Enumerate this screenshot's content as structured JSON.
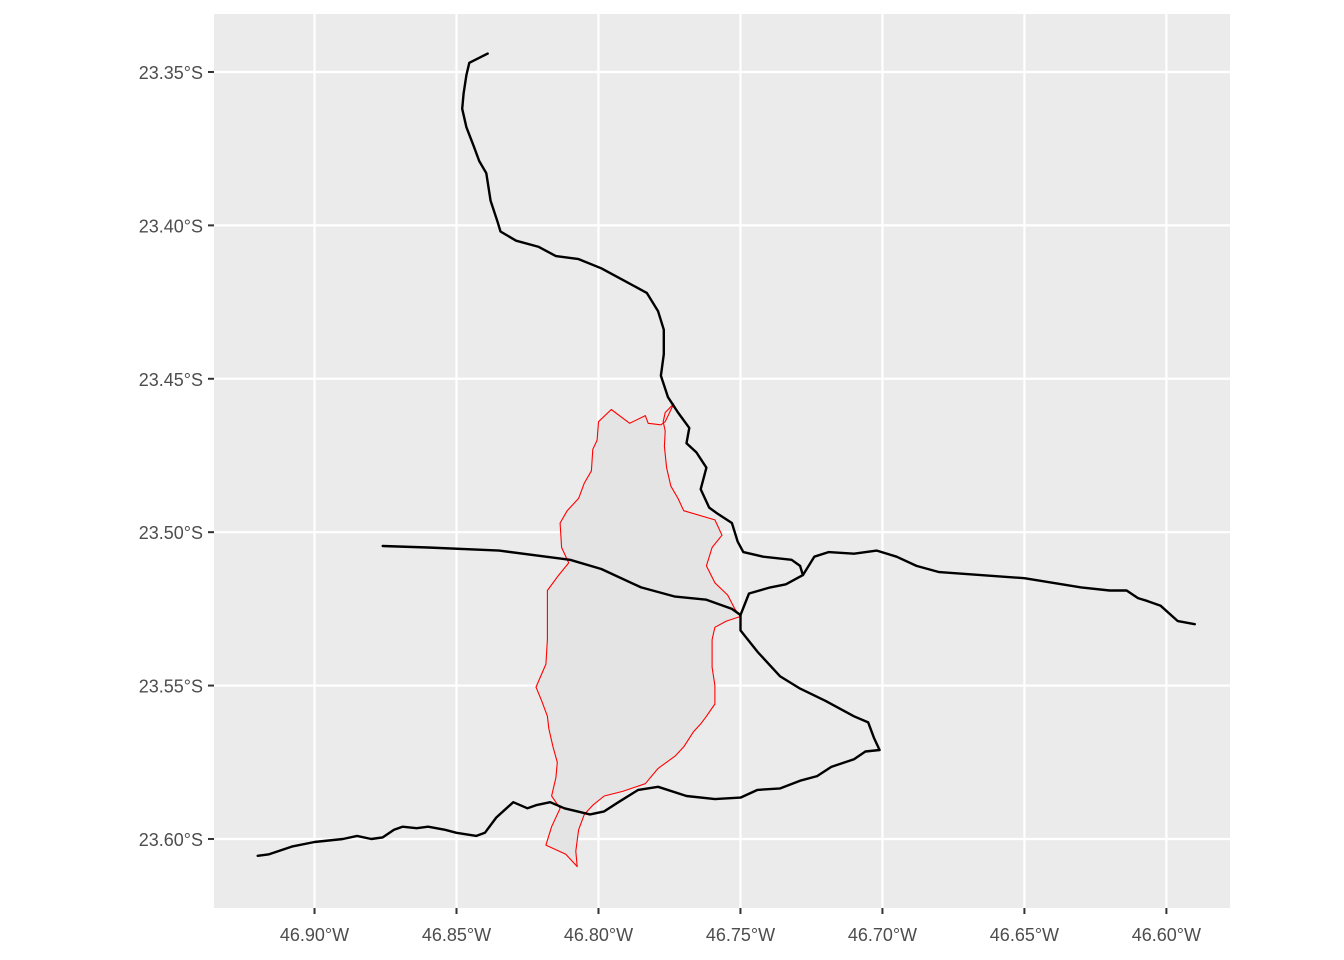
{
  "map": {
    "background_color": "#ebebeb",
    "grid_color": "#ffffff",
    "boundary_stroke_color": "#ff0000",
    "boundary_fill_color": "#e4e4e4",
    "road_color": "#000000",
    "x_ticks": [
      {
        "value": -46.9,
        "label": "46.90°W"
      },
      {
        "value": -46.85,
        "label": "46.85°W"
      },
      {
        "value": -46.8,
        "label": "46.80°W"
      },
      {
        "value": -46.75,
        "label": "46.75°W"
      },
      {
        "value": -46.7,
        "label": "46.70°W"
      },
      {
        "value": -46.65,
        "label": "46.65°W"
      },
      {
        "value": -46.6,
        "label": "46.60°W"
      }
    ],
    "y_ticks": [
      {
        "value": -23.35,
        "label": "23.35°S"
      },
      {
        "value": -23.4,
        "label": "23.40°S"
      },
      {
        "value": -23.45,
        "label": "23.45°S"
      },
      {
        "value": -23.5,
        "label": "23.50°S"
      },
      {
        "value": -23.55,
        "label": "23.55°S"
      },
      {
        "value": -23.6,
        "label": "23.60°S"
      }
    ],
    "lon_range": [
      -46.9354,
      -46.5776
    ],
    "lat_range": [
      -23.6225,
      -23.3311
    ],
    "boundary": [
      [
        -46.7735,
        -23.4582
      ],
      [
        -46.7765,
        -23.461
      ],
      [
        -46.7772,
        -23.464
      ],
      [
        -46.7765,
        -23.467
      ],
      [
        -46.7768,
        -23.472
      ],
      [
        -46.776,
        -23.479
      ],
      [
        -46.7745,
        -23.485
      ],
      [
        -46.772,
        -23.489
      ],
      [
        -46.77,
        -23.493
      ],
      [
        -46.759,
        -23.496
      ],
      [
        -46.7565,
        -23.501
      ],
      [
        -46.76,
        -23.505
      ],
      [
        -46.762,
        -23.511
      ],
      [
        -46.759,
        -23.5165
      ],
      [
        -46.7545,
        -23.5205
      ],
      [
        -46.752,
        -23.525
      ],
      [
        -46.75,
        -23.5275
      ],
      [
        -46.755,
        -23.529
      ],
      [
        -46.759,
        -23.531
      ],
      [
        -46.76,
        -23.535
      ],
      [
        -46.76,
        -23.544
      ],
      [
        -46.759,
        -23.55
      ],
      [
        -46.759,
        -23.556
      ],
      [
        -46.762,
        -23.56
      ],
      [
        -46.764,
        -23.5625
      ],
      [
        -46.7665,
        -23.565
      ],
      [
        -46.77,
        -23.57
      ],
      [
        -46.773,
        -23.573
      ],
      [
        -46.779,
        -23.577
      ],
      [
        -46.7835,
        -23.582
      ],
      [
        -46.7915,
        -23.5845
      ],
      [
        -46.798,
        -23.586
      ],
      [
        -46.802,
        -23.589
      ],
      [
        -46.805,
        -23.592
      ],
      [
        -46.807,
        -23.597
      ],
      [
        -46.808,
        -23.604
      ],
      [
        -46.8075,
        -23.609
      ],
      [
        -46.8115,
        -23.605
      ],
      [
        -46.8185,
        -23.602
      ],
      [
        -46.8165,
        -23.596
      ],
      [
        -46.8135,
        -23.59
      ],
      [
        -46.8165,
        -23.586
      ],
      [
        -46.815,
        -23.58
      ],
      [
        -46.8145,
        -23.575
      ],
      [
        -46.816,
        -23.57
      ],
      [
        -46.8175,
        -23.564
      ],
      [
        -46.818,
        -23.56
      ],
      [
        -46.82,
        -23.555
      ],
      [
        -46.822,
        -23.5505
      ],
      [
        -46.8185,
        -23.543
      ],
      [
        -46.818,
        -23.535
      ],
      [
        -46.818,
        -23.519
      ],
      [
        -46.814,
        -23.514
      ],
      [
        -46.8105,
        -23.51
      ],
      [
        -46.813,
        -23.505
      ],
      [
        -46.8135,
        -23.497
      ],
      [
        -46.811,
        -23.493
      ],
      [
        -46.807,
        -23.489
      ],
      [
        -46.805,
        -23.484
      ],
      [
        -46.8025,
        -23.48
      ],
      [
        -46.802,
        -23.473
      ],
      [
        -46.8005,
        -23.47
      ],
      [
        -46.8,
        -23.464
      ],
      [
        -46.7955,
        -23.46
      ],
      [
        -46.789,
        -23.4645
      ],
      [
        -46.7835,
        -23.462
      ],
      [
        -46.7825,
        -23.4645
      ],
      [
        -46.778,
        -23.465
      ],
      [
        -46.7765,
        -23.464
      ],
      [
        -46.7735,
        -23.4582
      ]
    ],
    "roads": [
      [
        [
          -46.839,
          -23.344
        ],
        [
          -46.8455,
          -23.347
        ],
        [
          -46.8465,
          -23.351
        ],
        [
          -46.8475,
          -23.357
        ],
        [
          -46.848,
          -23.362
        ],
        [
          -46.8465,
          -23.368
        ],
        [
          -46.844,
          -23.374
        ],
        [
          -46.842,
          -23.379
        ],
        [
          -46.8395,
          -23.383
        ],
        [
          -46.838,
          -23.392
        ],
        [
          -46.8355,
          -23.399
        ],
        [
          -46.8345,
          -23.402
        ],
        [
          -46.829,
          -23.405
        ],
        [
          -46.821,
          -23.407
        ],
        [
          -46.815,
          -23.41
        ],
        [
          -46.807,
          -23.411
        ],
        [
          -46.799,
          -23.414
        ],
        [
          -46.791,
          -23.418
        ],
        [
          -46.783,
          -23.422
        ],
        [
          -46.779,
          -23.428
        ],
        [
          -46.777,
          -23.434
        ],
        [
          -46.777,
          -23.442
        ],
        [
          -46.778,
          -23.449
        ],
        [
          -46.7755,
          -23.456
        ],
        [
          -46.772,
          -23.461
        ],
        [
          -46.768,
          -23.466
        ],
        [
          -46.769,
          -23.471
        ],
        [
          -46.7655,
          -23.474
        ],
        [
          -46.762,
          -23.479
        ],
        [
          -46.764,
          -23.486
        ],
        [
          -46.761,
          -23.492
        ],
        [
          -46.758,
          -23.494
        ],
        [
          -46.753,
          -23.497
        ],
        [
          -46.751,
          -23.503
        ],
        [
          -46.749,
          -23.5065
        ],
        [
          -46.742,
          -23.508
        ],
        [
          -46.732,
          -23.509
        ],
        [
          -46.729,
          -23.511
        ],
        [
          -46.728,
          -23.514
        ]
      ],
      [
        [
          -46.876,
          -23.5045
        ],
        [
          -46.86,
          -23.505
        ],
        [
          -46.835,
          -23.506
        ],
        [
          -46.81,
          -23.509
        ],
        [
          -46.799,
          -23.512
        ],
        [
          -46.785,
          -23.518
        ],
        [
          -46.773,
          -23.521
        ],
        [
          -46.762,
          -23.522
        ],
        [
          -46.753,
          -23.525
        ],
        [
          -46.75,
          -23.527
        ],
        [
          -46.747,
          -23.52
        ],
        [
          -46.7395,
          -23.518
        ],
        [
          -46.734,
          -23.517
        ],
        [
          -46.728,
          -23.514
        ],
        [
          -46.724,
          -23.508
        ],
        [
          -46.719,
          -23.5065
        ],
        [
          -46.71,
          -23.507
        ],
        [
          -46.702,
          -23.506
        ],
        [
          -46.695,
          -23.508
        ],
        [
          -46.688,
          -23.511
        ],
        [
          -46.68,
          -23.513
        ],
        [
          -46.65,
          -23.515
        ],
        [
          -46.63,
          -23.518
        ],
        [
          -46.62,
          -23.519
        ],
        [
          -46.614,
          -23.519
        ],
        [
          -46.61,
          -23.5215
        ],
        [
          -46.6065,
          -23.5225
        ],
        [
          -46.602,
          -23.524
        ],
        [
          -46.596,
          -23.529
        ],
        [
          -46.59,
          -23.53
        ]
      ],
      [
        [
          -46.75,
          -23.527
        ],
        [
          -46.75,
          -23.532
        ],
        [
          -46.744,
          -23.539
        ],
        [
          -46.736,
          -23.547
        ],
        [
          -46.729,
          -23.551
        ],
        [
          -46.72,
          -23.555
        ],
        [
          -46.71,
          -23.56
        ],
        [
          -46.705,
          -23.562
        ],
        [
          -46.703,
          -23.567
        ],
        [
          -46.701,
          -23.571
        ],
        [
          -46.706,
          -23.5715
        ],
        [
          -46.71,
          -23.574
        ],
        [
          -46.718,
          -23.5765
        ],
        [
          -46.723,
          -23.5795
        ],
        [
          -46.729,
          -23.581
        ],
        [
          -46.736,
          -23.5835
        ],
        [
          -46.744,
          -23.584
        ],
        [
          -46.75,
          -23.5865
        ],
        [
          -46.759,
          -23.587
        ],
        [
          -46.769,
          -23.586
        ],
        [
          -46.779,
          -23.583
        ],
        [
          -46.786,
          -23.584
        ],
        [
          -46.793,
          -23.588
        ],
        [
          -46.798,
          -23.591
        ],
        [
          -46.803,
          -23.592
        ],
        [
          -46.812,
          -23.59
        ],
        [
          -46.817,
          -23.588
        ],
        [
          -46.822,
          -23.589
        ],
        [
          -46.825,
          -23.59
        ],
        [
          -46.83,
          -23.588
        ],
        [
          -46.833,
          -23.5905
        ],
        [
          -46.836,
          -23.593
        ],
        [
          -46.84,
          -23.598
        ],
        [
          -46.843,
          -23.599
        ],
        [
          -46.85,
          -23.598
        ],
        [
          -46.854,
          -23.597
        ],
        [
          -46.86,
          -23.596
        ],
        [
          -46.864,
          -23.5965
        ],
        [
          -46.869,
          -23.596
        ],
        [
          -46.872,
          -23.597
        ],
        [
          -46.876,
          -23.5995
        ],
        [
          -46.88,
          -23.6
        ],
        [
          -46.885,
          -23.599
        ],
        [
          -46.89,
          -23.6
        ],
        [
          -46.9,
          -23.601
        ],
        [
          -46.908,
          -23.6025
        ],
        [
          -46.916,
          -23.605
        ],
        [
          -46.92,
          -23.6055
        ]
      ]
    ]
  }
}
